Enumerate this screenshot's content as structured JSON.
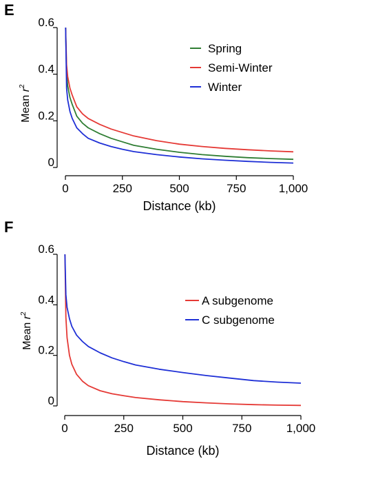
{
  "chart_data": [
    {
      "panel_label": "E",
      "type": "line",
      "xlabel": "Distance (kb)",
      "ylabel_main": "Mean ",
      "ylabel_italic": "r",
      "ylabel_sup": "2",
      "xlim": [
        0,
        1000
      ],
      "ylim": [
        0,
        0.6
      ],
      "xticks": [
        0,
        250,
        500,
        750,
        1000
      ],
      "xtick_labels": [
        "0",
        "250",
        "500",
        "750",
        "1,000"
      ],
      "yticks": [
        0,
        0.2,
        0.4,
        0.6
      ],
      "ytick_labels": [
        "0",
        "0.2",
        "0.4",
        "0.6"
      ],
      "legend_position": "top-right",
      "grid": false,
      "series": [
        {
          "name": "Spring",
          "color": "#2e7d32",
          "points": [
            [
              1,
              0.6
            ],
            [
              5,
              0.4
            ],
            [
              10,
              0.35
            ],
            [
              20,
              0.3
            ],
            [
              30,
              0.27
            ],
            [
              50,
              0.22
            ],
            [
              75,
              0.19
            ],
            [
              100,
              0.17
            ],
            [
              150,
              0.145
            ],
            [
              200,
              0.125
            ],
            [
              250,
              0.11
            ],
            [
              300,
              0.095
            ],
            [
              400,
              0.078
            ],
            [
              500,
              0.065
            ],
            [
              600,
              0.055
            ],
            [
              700,
              0.048
            ],
            [
              800,
              0.042
            ],
            [
              900,
              0.038
            ],
            [
              1000,
              0.035
            ]
          ]
        },
        {
          "name": "Semi-Winter",
          "color": "#e53935",
          "points": [
            [
              1,
              0.6
            ],
            [
              5,
              0.44
            ],
            [
              10,
              0.39
            ],
            [
              20,
              0.34
            ],
            [
              30,
              0.31
            ],
            [
              50,
              0.26
            ],
            [
              75,
              0.23
            ],
            [
              100,
              0.21
            ],
            [
              150,
              0.185
            ],
            [
              200,
              0.165
            ],
            [
              250,
              0.15
            ],
            [
              300,
              0.135
            ],
            [
              400,
              0.115
            ],
            [
              500,
              0.1
            ],
            [
              600,
              0.09
            ],
            [
              700,
              0.082
            ],
            [
              800,
              0.076
            ],
            [
              900,
              0.071
            ],
            [
              1000,
              0.067
            ]
          ]
        },
        {
          "name": "Winter",
          "color": "#1e2fd6",
          "points": [
            [
              1,
              0.6
            ],
            [
              5,
              0.34
            ],
            [
              10,
              0.29
            ],
            [
              20,
              0.24
            ],
            [
              30,
              0.21
            ],
            [
              50,
              0.17
            ],
            [
              75,
              0.145
            ],
            [
              100,
              0.125
            ],
            [
              150,
              0.105
            ],
            [
              200,
              0.09
            ],
            [
              250,
              0.078
            ],
            [
              300,
              0.068
            ],
            [
              400,
              0.055
            ],
            [
              500,
              0.045
            ],
            [
              600,
              0.037
            ],
            [
              700,
              0.031
            ],
            [
              800,
              0.026
            ],
            [
              900,
              0.022
            ],
            [
              1000,
              0.019
            ]
          ]
        }
      ]
    },
    {
      "panel_label": "F",
      "type": "line",
      "xlabel": "Distance (kb)",
      "ylabel_main": "Mean ",
      "ylabel_italic": "r",
      "ylabel_sup": "2",
      "xlim": [
        0,
        1000
      ],
      "ylim": [
        0,
        0.6
      ],
      "xticks": [
        0,
        250,
        500,
        750,
        1000
      ],
      "xtick_labels": [
        "0",
        "250",
        "500",
        "750",
        "1,000"
      ],
      "yticks": [
        0,
        0.2,
        0.4,
        0.6
      ],
      "ytick_labels": [
        "0",
        "0.2",
        "0.4",
        "0.6"
      ],
      "legend_position": "right",
      "grid": false,
      "series": [
        {
          "name": "A subgenome",
          "color": "#e53935",
          "points": [
            [
              1,
              0.6
            ],
            [
              5,
              0.35
            ],
            [
              10,
              0.27
            ],
            [
              20,
              0.2
            ],
            [
              30,
              0.165
            ],
            [
              50,
              0.125
            ],
            [
              75,
              0.098
            ],
            [
              100,
              0.08
            ],
            [
              150,
              0.06
            ],
            [
              200,
              0.048
            ],
            [
              250,
              0.04
            ],
            [
              300,
              0.033
            ],
            [
              400,
              0.024
            ],
            [
              500,
              0.017
            ],
            [
              600,
              0.012
            ],
            [
              700,
              0.008
            ],
            [
              800,
              0.005
            ],
            [
              900,
              0.003
            ],
            [
              1000,
              0.002
            ]
          ]
        },
        {
          "name": "C subgenome",
          "color": "#1e2fd6",
          "points": [
            [
              1,
              0.6
            ],
            [
              5,
              0.44
            ],
            [
              10,
              0.39
            ],
            [
              20,
              0.345
            ],
            [
              30,
              0.315
            ],
            [
              50,
              0.28
            ],
            [
              75,
              0.255
            ],
            [
              100,
              0.235
            ],
            [
              150,
              0.21
            ],
            [
              200,
              0.19
            ],
            [
              250,
              0.175
            ],
            [
              300,
              0.162
            ],
            [
              400,
              0.145
            ],
            [
              500,
              0.132
            ],
            [
              600,
              0.12
            ],
            [
              700,
              0.11
            ],
            [
              800,
              0.1
            ],
            [
              900,
              0.094
            ],
            [
              1000,
              0.09
            ]
          ]
        }
      ]
    }
  ]
}
